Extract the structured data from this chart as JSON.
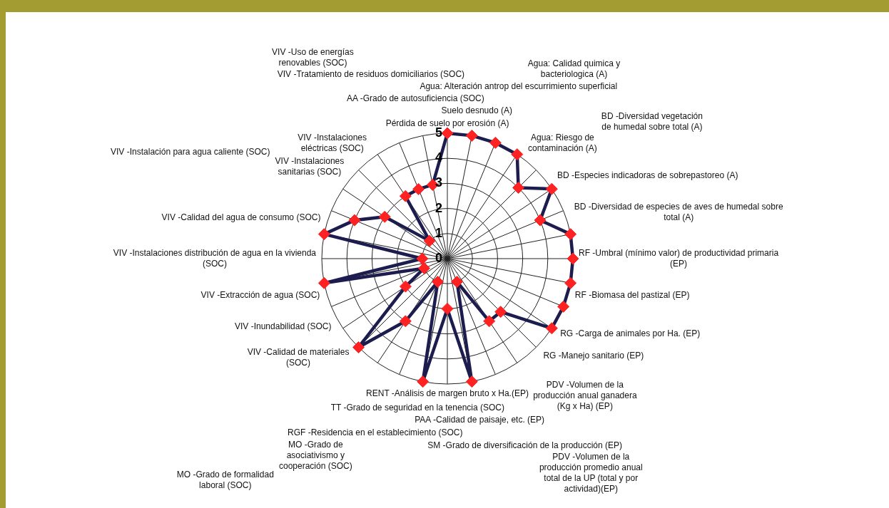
{
  "chart_data": {
    "type": "radar",
    "categories": [
      "Pérdida de suelo por erosión (A)",
      "Suelo desnudo (A)",
      "Agua: Alteración antrop del escurrimiento superficial",
      "Agua: Calidad quimica y bacteriologica (A)",
      "Agua: Riesgo de contaminación (A)",
      "BD -Diversidad vegetación de humedal sobre total (A)",
      "BD -Especies indicadoras de sobrepastoreo (A)",
      "BD -Diversidad de especies de aves de humedal sobre total (A)",
      "RF -Umbral (mínimo valor) de productividad primaria (EP)",
      "RF -Biomasa del pastizal (EP)",
      "RG -Carga de animales por Ha. (EP)",
      "RG -Manejo sanitario (EP)",
      "PDV -Volumen de la producción anual ganadera (Kg x Ha) (EP)",
      "PDV -Volumen de la producción promedio anual total de la UP (total y por actividad)(EP)",
      "SM -Grado de diversificación de la producción (EP)",
      "PAA -Calidad de paisaje, etc. (EP)",
      "RENT -Análisis de margen bruto x Ha.(EP)",
      "TT -Grado de seguridad en la tenencia (SOC)",
      "RGF -Residencia en el establecimiento (SOC)",
      "MO -Grado de asociativismo y cooperación (SOC)",
      "MO -Grado de formalidad laboral (SOC)",
      "VIV -Calidad de materiales (SOC)",
      "VIV -Inundabilidad (SOC)",
      "VIV -Extracción de agua (SOC)",
      "VIV -Instalaciones distribución de agua en la vivienda (SOC)",
      "VIV -Calidad del agua de consumo (SOC)",
      "VIV -Instalación para agua caliente (SOC)",
      "VIV -Instalaciones sanitarias (SOC)",
      "VIV -Instalaciones eléctricas (SOC)",
      "VIV -Uso de energías renovables (SOC)",
      "VIV -Tratamiento de residuos domiciliarios (SOC)",
      "AA -Grado de autosuficiencia (SOC)"
    ],
    "series": [
      {
        "color": "#1c1d4e",
        "colors": [
          "#ff2222",
          "#ff2222",
          "#ff2222",
          "#ff2222",
          "#ff2222",
          "#ff2222",
          "#ff2222",
          "#ff2222",
          "#ff2222",
          "#ff2222",
          "#ff2222",
          "#ff2222",
          "#ff2222",
          "#ff2222",
          "#ff2222",
          "#ff2222",
          "#ff2222",
          "#ff2222",
          "#ff2222",
          "#ff2222",
          "#ff2222",
          "#ff2222",
          "#ff2222",
          "#ff2222",
          "#ff2222",
          "#ff2222",
          "#ff2222",
          "#ff2222",
          "#ff2222",
          "#ff2222",
          "#ff2222",
          "#ff2222"
        ],
        "values": [
          5,
          5,
          5,
          5,
          4,
          5,
          4,
          5,
          5,
          5,
          5,
          5,
          3,
          3,
          1,
          5,
          2,
          5,
          1,
          3,
          5,
          2,
          1,
          5,
          1,
          5,
          4,
          3,
          1,
          3,
          3,
          3
        ]
      }
    ],
    "ylim": [
      0,
      5
    ],
    "yticks": [
      0,
      1,
      2,
      3,
      4,
      5
    ],
    "grid": true,
    "legend": false,
    "marker": "diamond",
    "line_style": "solid"
  }
}
